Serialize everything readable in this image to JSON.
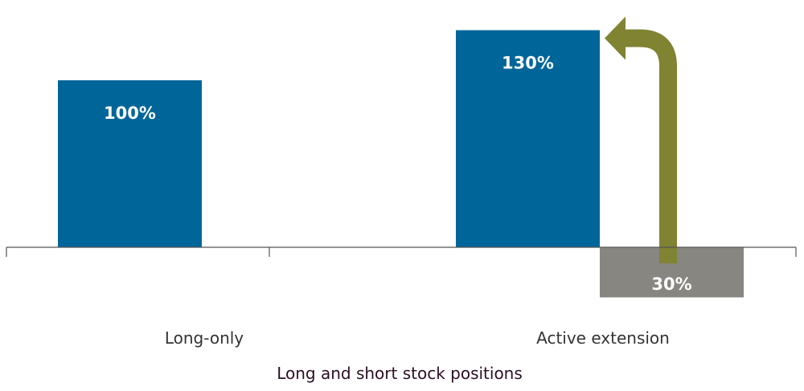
{
  "chart_data": {
    "type": "bar",
    "categories": [
      "Long-only",
      "Active extension"
    ],
    "bars": [
      {
        "category_index": 0,
        "value": 100,
        "label": "100%",
        "kind": "long"
      },
      {
        "category_index": 1,
        "value": 130,
        "label": "130%",
        "kind": "long"
      },
      {
        "category_index": 1,
        "value": -30,
        "label": "30%",
        "kind": "short"
      }
    ],
    "xlabel": "Long and short stock positions",
    "ylabel": "",
    "ylim": [
      -40,
      130
    ],
    "grid": false,
    "legend": "none",
    "annotation": {
      "type": "curved-arrow",
      "from": "short 30%",
      "to": "long 130%",
      "color": "#7f8332"
    }
  },
  "colors": {
    "long": "#006699",
    "short": "#878680",
    "arrow": "#7f8332",
    "axis": "#555555"
  }
}
